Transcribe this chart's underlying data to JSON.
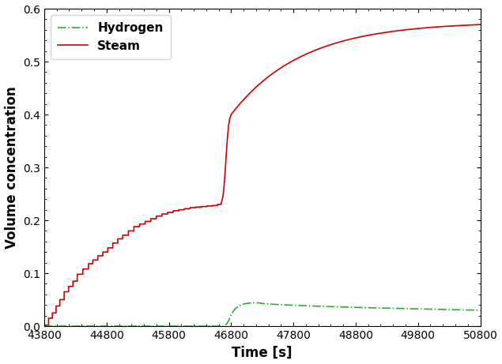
{
  "title": "",
  "xlabel": "Time [s]",
  "ylabel": "Volume concentration",
  "xlim": [
    43800,
    50800
  ],
  "ylim": [
    0,
    0.6
  ],
  "xticks": [
    43800,
    44800,
    45800,
    46800,
    47800,
    48800,
    49800,
    50800
  ],
  "yticks": [
    0.0,
    0.1,
    0.2,
    0.3,
    0.4,
    0.5,
    0.6
  ],
  "steam_color": "#cc0000",
  "hydrogen_color": "#33aa33",
  "legend_hydrogen": "Hydrogen",
  "legend_steam": "Steam",
  "background_color": "#ffffff",
  "linewidth": 1.2
}
